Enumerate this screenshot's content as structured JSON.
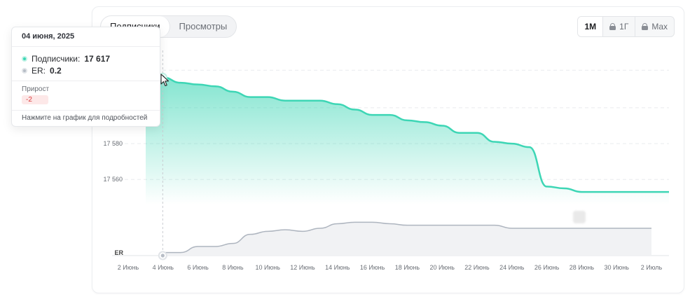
{
  "toggle": {
    "subscribers": "Подписчики",
    "views": "Просмотры"
  },
  "range": {
    "m1": "1M",
    "y1": "1Г",
    "max": "Max"
  },
  "tooltip": {
    "date": "04 июня, 2025",
    "subs_label": "Подписчики:",
    "subs_value": "17 617",
    "er_label": "ER:",
    "er_value": "0.2",
    "gain_label": "Прирост",
    "gain_value": "-2",
    "hint": "Нажмите на график для подробностей"
  },
  "colors": {
    "subscribers": "#3dd6b5",
    "er": "#aeb5bf",
    "gain_negative": "#d93b3b"
  },
  "chart_data": {
    "type": "area",
    "x": [
      "2 Июнь",
      "3 Июнь",
      "4 Июнь",
      "5 Июнь",
      "6 Июнь",
      "7 Июнь",
      "8 Июнь",
      "9 Июнь",
      "10 Июнь",
      "11 Июнь",
      "12 Июнь",
      "13 Июнь",
      "14 Июнь",
      "15 Июнь",
      "16 Июнь",
      "17 Июнь",
      "18 Июнь",
      "19 Июнь",
      "20 Июнь",
      "21 Июнь",
      "22 Июнь",
      "23 Июнь",
      "24 Июнь",
      "25 Июнь",
      "26 Июнь",
      "27 Июнь",
      "28 Июнь",
      "29 Июнь",
      "30 Июнь",
      "1 Июль",
      "2 Июль"
    ],
    "xticks": [
      "2 Июнь",
      "4 Июнь",
      "6 Июнь",
      "8 Июнь",
      "10 Июнь",
      "12 Июнь",
      "14 Июнь",
      "16 Июнь",
      "18 Июнь",
      "20 Июнь",
      "22 Июнь",
      "24 Июнь",
      "26 Июнь",
      "28 Июнь",
      "30 Июнь",
      "2 Июль"
    ],
    "yticks": [
      17560,
      17580
    ],
    "ylim": [
      17546,
      17625
    ],
    "subscribers_start_index": 1,
    "series": [
      {
        "name": "Подписчики",
        "values": [
          null,
          17619,
          17617,
          17614,
          17613,
          17612,
          17609,
          17606,
          17606,
          17604,
          17604,
          17604,
          17602,
          17599,
          17596,
          17596,
          17593,
          17592,
          17590,
          17586,
          17586,
          17581,
          17580,
          17578,
          17556,
          17555,
          17553,
          17553,
          17553,
          17553,
          17553
        ]
      },
      {
        "name": "ER",
        "values": [
          null,
          null,
          0.2,
          0.2,
          0.6,
          0.6,
          0.8,
          1.4,
          1.6,
          1.7,
          1.6,
          1.8,
          2.1,
          2.2,
          2.2,
          2.1,
          2.0,
          2.0,
          2.0,
          2.0,
          2.0,
          2.0,
          1.8,
          1.8,
          1.8,
          1.8,
          1.8,
          1.8,
          1.8,
          1.8,
          null
        ]
      }
    ],
    "er_label": "ER",
    "er_ylim": [
      0,
      3
    ],
    "hover_index": 2
  }
}
